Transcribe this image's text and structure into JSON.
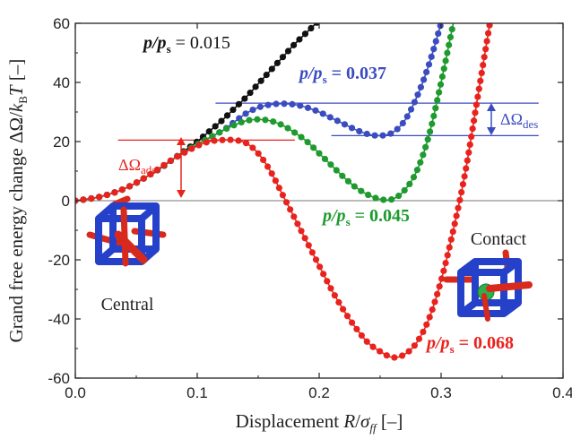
{
  "chart_data": {
    "type": "line",
    "xlabel": {
      "main": "Displacement ",
      "var": "R",
      "slash": "/",
      "sigma": "σ",
      "sub": "ff",
      "unit": " [–]"
    },
    "ylabel": {
      "main": "Grand free energy change ",
      "delta": "ΔΩ/",
      "k": "k",
      "ksub": "B",
      "T": "T",
      "unit": " [–]"
    },
    "xlim": [
      0,
      0.4
    ],
    "ylim": [
      -60,
      60
    ],
    "xticks": [
      "0.0",
      "0.1",
      "0.2",
      "0.3",
      "0.4"
    ],
    "yticks": [
      "-60",
      "-40",
      "-20",
      "0",
      "20",
      "40",
      "60"
    ],
    "xtick_values": [
      0,
      0.1,
      0.2,
      0.3,
      0.4
    ],
    "ytick_values": [
      -60,
      -40,
      -20,
      0,
      20,
      40,
      60
    ],
    "series": [
      {
        "name_pre": "p/p",
        "name_sub": "s",
        "name_val": " = 0.015",
        "color": "#111111",
        "x": [
          0.0,
          0.01,
          0.02,
          0.03,
          0.04,
          0.05,
          0.06,
          0.07,
          0.08,
          0.09,
          0.1,
          0.11,
          0.12,
          0.13,
          0.14,
          0.15,
          0.16,
          0.17,
          0.18,
          0.19,
          0.2
        ],
        "y": [
          0,
          0.5,
          1.3,
          2.5,
          4,
          6,
          8.5,
          11,
          14,
          17,
          20,
          23.5,
          27,
          31,
          35,
          39.5,
          44,
          48.5,
          53,
          57,
          61
        ]
      },
      {
        "name_pre": "p/p",
        "name_sub": "s",
        "name_val": " = 0.037",
        "color": "#3b4cc0",
        "x": [
          0.0,
          0.02,
          0.04,
          0.06,
          0.08,
          0.1,
          0.12,
          0.13,
          0.14,
          0.15,
          0.16,
          0.17,
          0.18,
          0.19,
          0.2,
          0.21,
          0.22,
          0.23,
          0.24,
          0.25,
          0.26,
          0.27,
          0.28,
          0.29,
          0.3
        ],
        "y": [
          0,
          1.3,
          4,
          8.5,
          14,
          19,
          23.5,
          26.5,
          29.5,
          31.5,
          32.5,
          32.8,
          32.5,
          31.5,
          30,
          28,
          26,
          24,
          22.5,
          22,
          23,
          27,
          35,
          46,
          60
        ]
      },
      {
        "name_pre": "p/p",
        "name_sub": "s",
        "name_val": " = 0.045",
        "color": "#1e9a2e",
        "x": [
          0.0,
          0.02,
          0.04,
          0.06,
          0.08,
          0.1,
          0.12,
          0.13,
          0.14,
          0.15,
          0.16,
          0.17,
          0.18,
          0.19,
          0.2,
          0.21,
          0.22,
          0.23,
          0.24,
          0.25,
          0.26,
          0.27,
          0.28,
          0.29,
          0.3,
          0.31
        ],
        "y": [
          0,
          1.3,
          4,
          8.5,
          14,
          19,
          23.5,
          25.5,
          27,
          27.5,
          27,
          25.5,
          23,
          20,
          16,
          12,
          8,
          4.5,
          2,
          0.5,
          0.5,
          3.5,
          10,
          22,
          40,
          60
        ]
      },
      {
        "name_pre": "p/p",
        "name_sub": "s",
        "name_val": " = 0.068",
        "color": "#e8231e",
        "x": [
          0.0,
          0.02,
          0.04,
          0.06,
          0.08,
          0.1,
          0.11,
          0.12,
          0.13,
          0.14,
          0.15,
          0.16,
          0.17,
          0.18,
          0.19,
          0.2,
          0.21,
          0.22,
          0.23,
          0.24,
          0.25,
          0.26,
          0.27,
          0.28,
          0.29,
          0.3,
          0.31,
          0.32,
          0.33,
          0.34
        ],
        "y": [
          0,
          1.3,
          4,
          8.5,
          14,
          18.5,
          20,
          20.5,
          20.5,
          19.5,
          16,
          10,
          2,
          -6,
          -14,
          -22,
          -30,
          -37,
          -43,
          -48,
          -51,
          -53,
          -52,
          -48,
          -40,
          -27,
          -10,
          10,
          35,
          60
        ]
      }
    ],
    "curve_labels": [
      {
        "pre": "p/p",
        "sub": "s",
        "val": " = 0.015",
        "color": "#111111"
      },
      {
        "pre": "p/p",
        "sub": "s",
        "val": " = 0.037",
        "color": "#3b4cc0"
      },
      {
        "pre": "p/p",
        "sub": "s",
        "val": " = 0.045",
        "color": "#1e9a2e"
      },
      {
        "pre": "p/p",
        "sub": "s",
        "val": " = 0.068",
        "color": "#e8231e"
      }
    ],
    "annotations": {
      "ads_label": "ΔΩ",
      "ads_sub": "ads",
      "ads_color": "#e8231e",
      "des_label": "ΔΩ",
      "des_sub": "des",
      "des_color": "#3b4cc0"
    },
    "insets": {
      "central_label": "Central",
      "contact_label": "Contact"
    }
  }
}
